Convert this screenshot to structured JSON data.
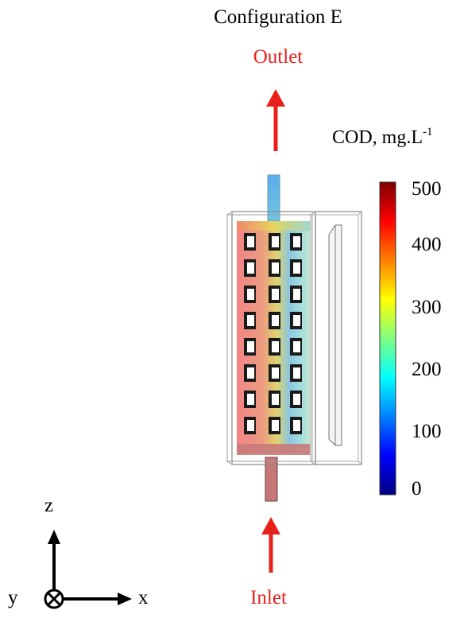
{
  "title": "Configuration E",
  "outlet_label": "Outlet",
  "inlet_label": "Inlet",
  "colorbar": {
    "title": "COD, mg.L",
    "title_superscript": "-1",
    "ticks": [
      "500",
      "400",
      "300",
      "200",
      "100",
      "0"
    ],
    "range": [
      0,
      500
    ],
    "colors": [
      "#00007f",
      "#0000ff",
      "#0080ff",
      "#00ffff",
      "#80ff80",
      "#ffff00",
      "#ff8000",
      "#ff0000",
      "#7f0000"
    ]
  },
  "axes": {
    "z_label": "z",
    "x_label": "x",
    "y_label": "y"
  },
  "arrow_color": "#e8201c"
}
